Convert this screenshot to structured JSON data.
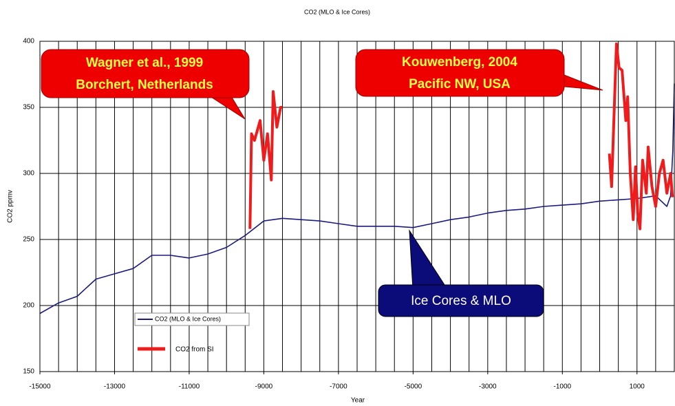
{
  "chart_data": {
    "type": "line",
    "title": "CO2 (MLO & Ice Cores)",
    "x_label": "Year",
    "y_label": "CO2 ppmv",
    "xlim": [
      -15000,
      2000
    ],
    "ylim": [
      150,
      400
    ],
    "xticks": [
      -15000,
      -13000,
      -11000,
      -9000,
      -7000,
      -5000,
      -3000,
      -1000,
      1000
    ],
    "yticks": [
      150,
      200,
      250,
      300,
      350,
      400
    ],
    "x_gridlines": [
      -15000,
      -14500,
      -14000,
      -13500,
      -13000,
      -12500,
      -12000,
      -11500,
      -11000,
      -10500,
      -10000,
      -9500,
      -9000,
      -8500,
      -8000,
      -7500,
      -7000,
      -6500,
      -6000,
      -5500,
      -5000,
      -4500,
      -4000,
      -3500,
      -3000,
      -2500,
      -2000,
      -1500,
      -1000,
      -500,
      0,
      500,
      1000,
      1500
    ],
    "grid": true,
    "series": [
      {
        "name": "CO2 (MLO & Ice Cores)",
        "color": "#1a1a80",
        "x": [
          -15000,
          -14500,
          -14000,
          -13500,
          -13000,
          -12500,
          -12000,
          -11500,
          -11000,
          -10500,
          -10000,
          -9500,
          -9000,
          -8500,
          -8000,
          -7500,
          -7000,
          -6500,
          -6000,
          -5500,
          -5000,
          -4500,
          -4000,
          -3500,
          -3000,
          -2500,
          -2000,
          -1500,
          -1000,
          -500,
          0,
          500,
          1000,
          1500,
          1800,
          1900,
          1960,
          2000
        ],
        "values": [
          194,
          202,
          207,
          220,
          224,
          228,
          238,
          238,
          236,
          239,
          244,
          253,
          264,
          266,
          265,
          264,
          262,
          260,
          260,
          260,
          259,
          262,
          265,
          267,
          270,
          272,
          273,
          275,
          276,
          277,
          279,
          280,
          281,
          283,
          275,
          283,
          317,
          368
        ]
      },
      {
        "name": "CO2 from SI",
        "color": "#ee1c1c",
        "x": [
          -9370,
          -9330,
          -9250,
          -9100,
          -9000,
          -8900,
          -8800,
          -8750,
          -8650,
          -8550,
          -8500,
          -8000,
          260,
          320,
          450,
          520,
          600,
          700,
          750,
          820,
          900,
          960,
          1020,
          1080,
          1150,
          1250,
          1300,
          1400,
          1500,
          1600,
          1700,
          1800,
          1900,
          1950
        ],
        "values": [
          258,
          330,
          325,
          340,
          310,
          330,
          295,
          362,
          335,
          350,
          350,
          null,
          315,
          290,
          398,
          380,
          378,
          340,
          358,
          300,
          265,
          305,
          270,
          258,
          310,
          285,
          320,
          290,
          275,
          300,
          310,
          285,
          300,
          282
        ]
      }
    ],
    "annotations": [
      {
        "lines": [
          "Wagner et al., 1999",
          "Borchert, Netherlands"
        ]
      },
      {
        "lines": [
          "Kouwenberg, 2004",
          "Pacific NW, USA"
        ]
      },
      {
        "lines": [
          "Ice Cores & MLO"
        ]
      }
    ]
  }
}
